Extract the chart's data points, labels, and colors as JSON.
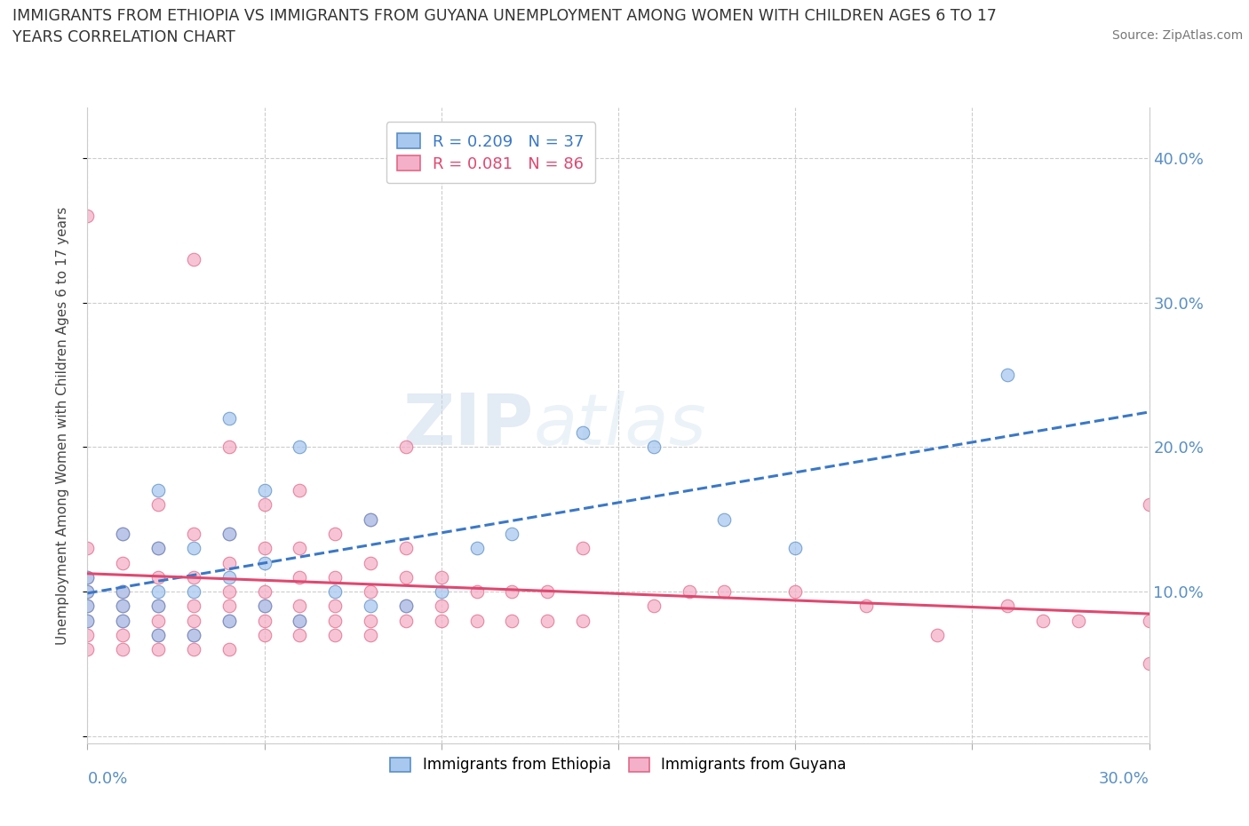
{
  "title": "IMMIGRANTS FROM ETHIOPIA VS IMMIGRANTS FROM GUYANA UNEMPLOYMENT AMONG WOMEN WITH CHILDREN AGES 6 TO 17\nYEARS CORRELATION CHART",
  "source": "Source: ZipAtlas.com",
  "ylabel": "Unemployment Among Women with Children Ages 6 to 17 years",
  "xlim": [
    0.0,
    0.3
  ],
  "ylim": [
    -0.005,
    0.435
  ],
  "ethiopia_color": "#a8c8f0",
  "guyana_color": "#f4b0c8",
  "ethiopia_edge": "#5a8fc4",
  "guyana_edge": "#e06888",
  "trend_ethiopia_color": "#3a78c8",
  "trend_guyana_color": "#e04870",
  "R_ethiopia": 0.209,
  "N_ethiopia": 37,
  "R_guyana": 0.081,
  "N_guyana": 86,
  "legend_label_ethiopia": "Immigrants from Ethiopia",
  "legend_label_guyana": "Immigrants from Guyana",
  "watermark_1": "ZIP",
  "watermark_2": "atlas",
  "background_color": "#ffffff",
  "grid_color": "#cccccc",
  "axis_label_color": "#5a8fc4",
  "title_color": "#333333",
  "marker_size": 110,
  "ethiopia_x": [
    0.0,
    0.0,
    0.0,
    0.0,
    0.01,
    0.01,
    0.01,
    0.01,
    0.02,
    0.02,
    0.02,
    0.02,
    0.02,
    0.03,
    0.03,
    0.03,
    0.04,
    0.04,
    0.04,
    0.04,
    0.05,
    0.05,
    0.05,
    0.06,
    0.06,
    0.07,
    0.08,
    0.08,
    0.09,
    0.1,
    0.11,
    0.12,
    0.14,
    0.16,
    0.18,
    0.2,
    0.26
  ],
  "ethiopia_y": [
    0.08,
    0.09,
    0.1,
    0.11,
    0.08,
    0.09,
    0.1,
    0.14,
    0.07,
    0.09,
    0.1,
    0.13,
    0.17,
    0.07,
    0.1,
    0.13,
    0.08,
    0.11,
    0.14,
    0.22,
    0.09,
    0.12,
    0.17,
    0.08,
    0.2,
    0.1,
    0.09,
    0.15,
    0.09,
    0.1,
    0.13,
    0.14,
    0.21,
    0.2,
    0.15,
    0.13,
    0.25
  ],
  "guyana_x": [
    0.0,
    0.0,
    0.0,
    0.0,
    0.0,
    0.0,
    0.0,
    0.0,
    0.01,
    0.01,
    0.01,
    0.01,
    0.01,
    0.01,
    0.01,
    0.02,
    0.02,
    0.02,
    0.02,
    0.02,
    0.02,
    0.02,
    0.03,
    0.03,
    0.03,
    0.03,
    0.03,
    0.03,
    0.03,
    0.04,
    0.04,
    0.04,
    0.04,
    0.04,
    0.04,
    0.04,
    0.05,
    0.05,
    0.05,
    0.05,
    0.05,
    0.05,
    0.06,
    0.06,
    0.06,
    0.06,
    0.06,
    0.06,
    0.07,
    0.07,
    0.07,
    0.07,
    0.07,
    0.08,
    0.08,
    0.08,
    0.08,
    0.08,
    0.09,
    0.09,
    0.09,
    0.09,
    0.09,
    0.1,
    0.1,
    0.1,
    0.11,
    0.11,
    0.12,
    0.12,
    0.13,
    0.13,
    0.14,
    0.14,
    0.16,
    0.17,
    0.18,
    0.2,
    0.22,
    0.24,
    0.26,
    0.27,
    0.28,
    0.3,
    0.3,
    0.3
  ],
  "guyana_y": [
    0.06,
    0.07,
    0.08,
    0.09,
    0.1,
    0.11,
    0.13,
    0.36,
    0.06,
    0.07,
    0.08,
    0.09,
    0.1,
    0.12,
    0.14,
    0.06,
    0.07,
    0.08,
    0.09,
    0.11,
    0.13,
    0.16,
    0.06,
    0.07,
    0.08,
    0.09,
    0.11,
    0.14,
    0.33,
    0.06,
    0.08,
    0.09,
    0.1,
    0.12,
    0.14,
    0.2,
    0.07,
    0.08,
    0.09,
    0.1,
    0.13,
    0.16,
    0.07,
    0.08,
    0.09,
    0.11,
    0.13,
    0.17,
    0.07,
    0.08,
    0.09,
    0.11,
    0.14,
    0.07,
    0.08,
    0.1,
    0.12,
    0.15,
    0.08,
    0.09,
    0.11,
    0.13,
    0.2,
    0.08,
    0.09,
    0.11,
    0.08,
    0.1,
    0.08,
    0.1,
    0.08,
    0.1,
    0.08,
    0.13,
    0.09,
    0.1,
    0.1,
    0.1,
    0.09,
    0.07,
    0.09,
    0.08,
    0.08,
    0.05,
    0.08,
    0.16
  ]
}
